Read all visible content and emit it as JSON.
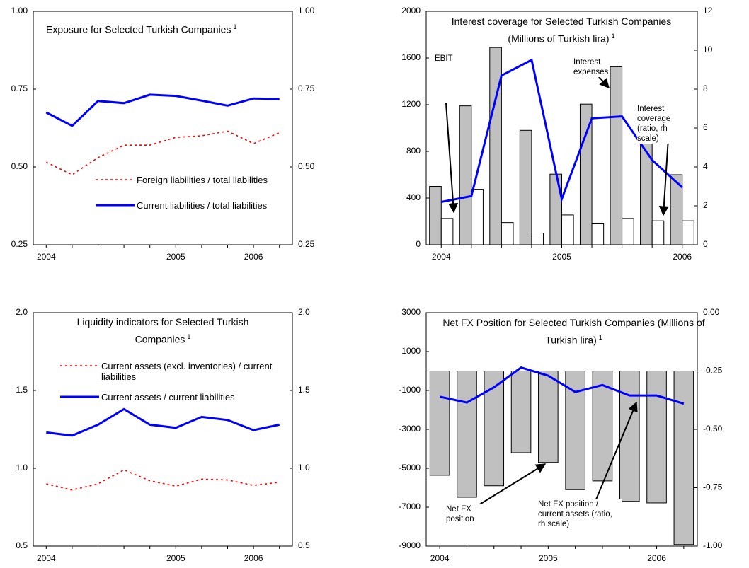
{
  "chart_data": [
    {
      "type": "line",
      "title": "Exposure for Selected Turkish Companies",
      "title_note": "1",
      "categories": [
        "2004",
        null,
        null,
        null,
        null,
        "2005",
        null,
        null,
        "2006",
        null
      ],
      "series": [
        {
          "name": "Foreign liabilities / total liabilities",
          "color": "#ff0000",
          "dash": "dotted",
          "values": [
            0.515,
            0.475,
            0.53,
            0.57,
            0.57,
            0.595,
            0.6,
            0.615,
            0.575,
            0.61
          ]
        },
        {
          "name": "Current liabilities / total liabilities",
          "color": "#0000ff",
          "values": [
            0.675,
            0.632,
            0.712,
            0.705,
            0.732,
            0.728,
            0.713,
            0.697,
            0.72,
            0.718
          ]
        }
      ],
      "ylim": [
        0.25,
        1
      ],
      "yticks": [
        0.25,
        {
          "value": 0.5,
          "label": "0.50"
        },
        0.75,
        {
          "value": 1,
          "label": "1.00"
        }
      ],
      "y2lim": [
        0.25,
        1
      ],
      "y2ticks": [
        0.25,
        {
          "value": 0.5,
          "label": "0.50"
        },
        0.75,
        {
          "value": 1,
          "label": "1.00"
        }
      ]
    },
    {
      "type": "bar",
      "title": "Interest coverage for Selected Turkish Companies (Millions of Turkish lira)",
      "title_note": "1",
      "categories": [
        "2004",
        null,
        null,
        null,
        "2005",
        null,
        null,
        null,
        "2006"
      ],
      "series": [
        {
          "name": "EBIT",
          "color": "#c0c0c0",
          "values": [
            500,
            1190,
            1690,
            980,
            605,
            1205,
            1525,
            895,
            600
          ]
        },
        {
          "name": "Interest expenses",
          "color": "#ffffff",
          "values": [
            225,
            475,
            190,
            100,
            255,
            185,
            225,
            205,
            205
          ]
        },
        {
          "name": "Interest coverage (ratio, rh scale)",
          "color": "#0000ff",
          "type": "line",
          "axis": "y2",
          "values": [
            2.2,
            2.5,
            8.7,
            9.5,
            2.35,
            6.5,
            6.6,
            4.35,
            2.95
          ]
        }
      ],
      "ylim": [
        0,
        2000
      ],
      "yticks": [
        0,
        400,
        800,
        1200,
        1600,
        2000
      ],
      "y2lim": [
        0,
        12
      ],
      "y2ticks": [
        0,
        2,
        4,
        6,
        8,
        10,
        12
      ]
    },
    {
      "type": "line",
      "title": "Liquidity indicators for Selected Turkish Companies",
      "title_note": "1",
      "categories": [
        "2004",
        null,
        null,
        null,
        null,
        "2005",
        null,
        null,
        "2006",
        null
      ],
      "series": [
        {
          "name": "Current assets (excl. inventories) / current liabilities",
          "color": "#ff0000",
          "dash": "dotted",
          "values": [
            0.9,
            0.86,
            0.9,
            0.99,
            0.92,
            0.885,
            0.93,
            0.925,
            0.89,
            0.91
          ]
        },
        {
          "name": "Current assets / current liabilities",
          "color": "#0000ff",
          "values": [
            1.23,
            1.21,
            1.28,
            1.38,
            1.28,
            1.26,
            1.33,
            1.31,
            1.245,
            1.28
          ]
        }
      ],
      "ylim": [
        0.5,
        2
      ],
      "yticks": [
        0.5,
        {
          "value": 1,
          "label": "1.0"
        },
        1.5,
        {
          "value": 2,
          "label": "2.0"
        }
      ],
      "y2lim": [
        0.5,
        2
      ],
      "y2ticks": [
        0.5,
        {
          "value": 1,
          "label": "1.0"
        },
        1.5,
        {
          "value": 2,
          "label": "2.0"
        }
      ]
    },
    {
      "type": "bar",
      "title": "Net FX Position for Selected Turkish Companies (Millions of Turkish lira)",
      "title_note": "1",
      "categories": [
        "2004",
        null,
        null,
        null,
        "2005",
        null,
        null,
        null,
        "2006",
        null
      ],
      "series": [
        {
          "name": "Net FX position",
          "color": "#c0c0c0",
          "values": [
            -5360,
            -6490,
            -5900,
            -4200,
            -4700,
            -6100,
            -5650,
            -6700,
            -6780,
            -8920
          ]
        },
        {
          "name": "Net FX position / current assets (ratio, rh scale)",
          "color": "#0000ff",
          "type": "line",
          "axis": "y2",
          "values": [
            -0.36,
            -0.385,
            -0.32,
            -0.235,
            -0.27,
            -0.34,
            -0.31,
            -0.355,
            -0.355,
            -0.39
          ]
        }
      ],
      "ylim": [
        -9000,
        3000
      ],
      "yticks": [
        -9000,
        -7000,
        -5000,
        -3000,
        -1000,
        1000,
        3000
      ],
      "y2lim": [
        -1,
        0
      ],
      "y2ticks": [
        {
          "value": -1,
          "label": "-1.00"
        },
        {
          "value": -0.75,
          "label": "-0.75"
        },
        {
          "value": -0.5,
          "label": "-0.50"
        },
        {
          "value": -0.25,
          "label": "-0.25"
        },
        {
          "value": 0,
          "label": "0.00"
        }
      ]
    }
  ]
}
